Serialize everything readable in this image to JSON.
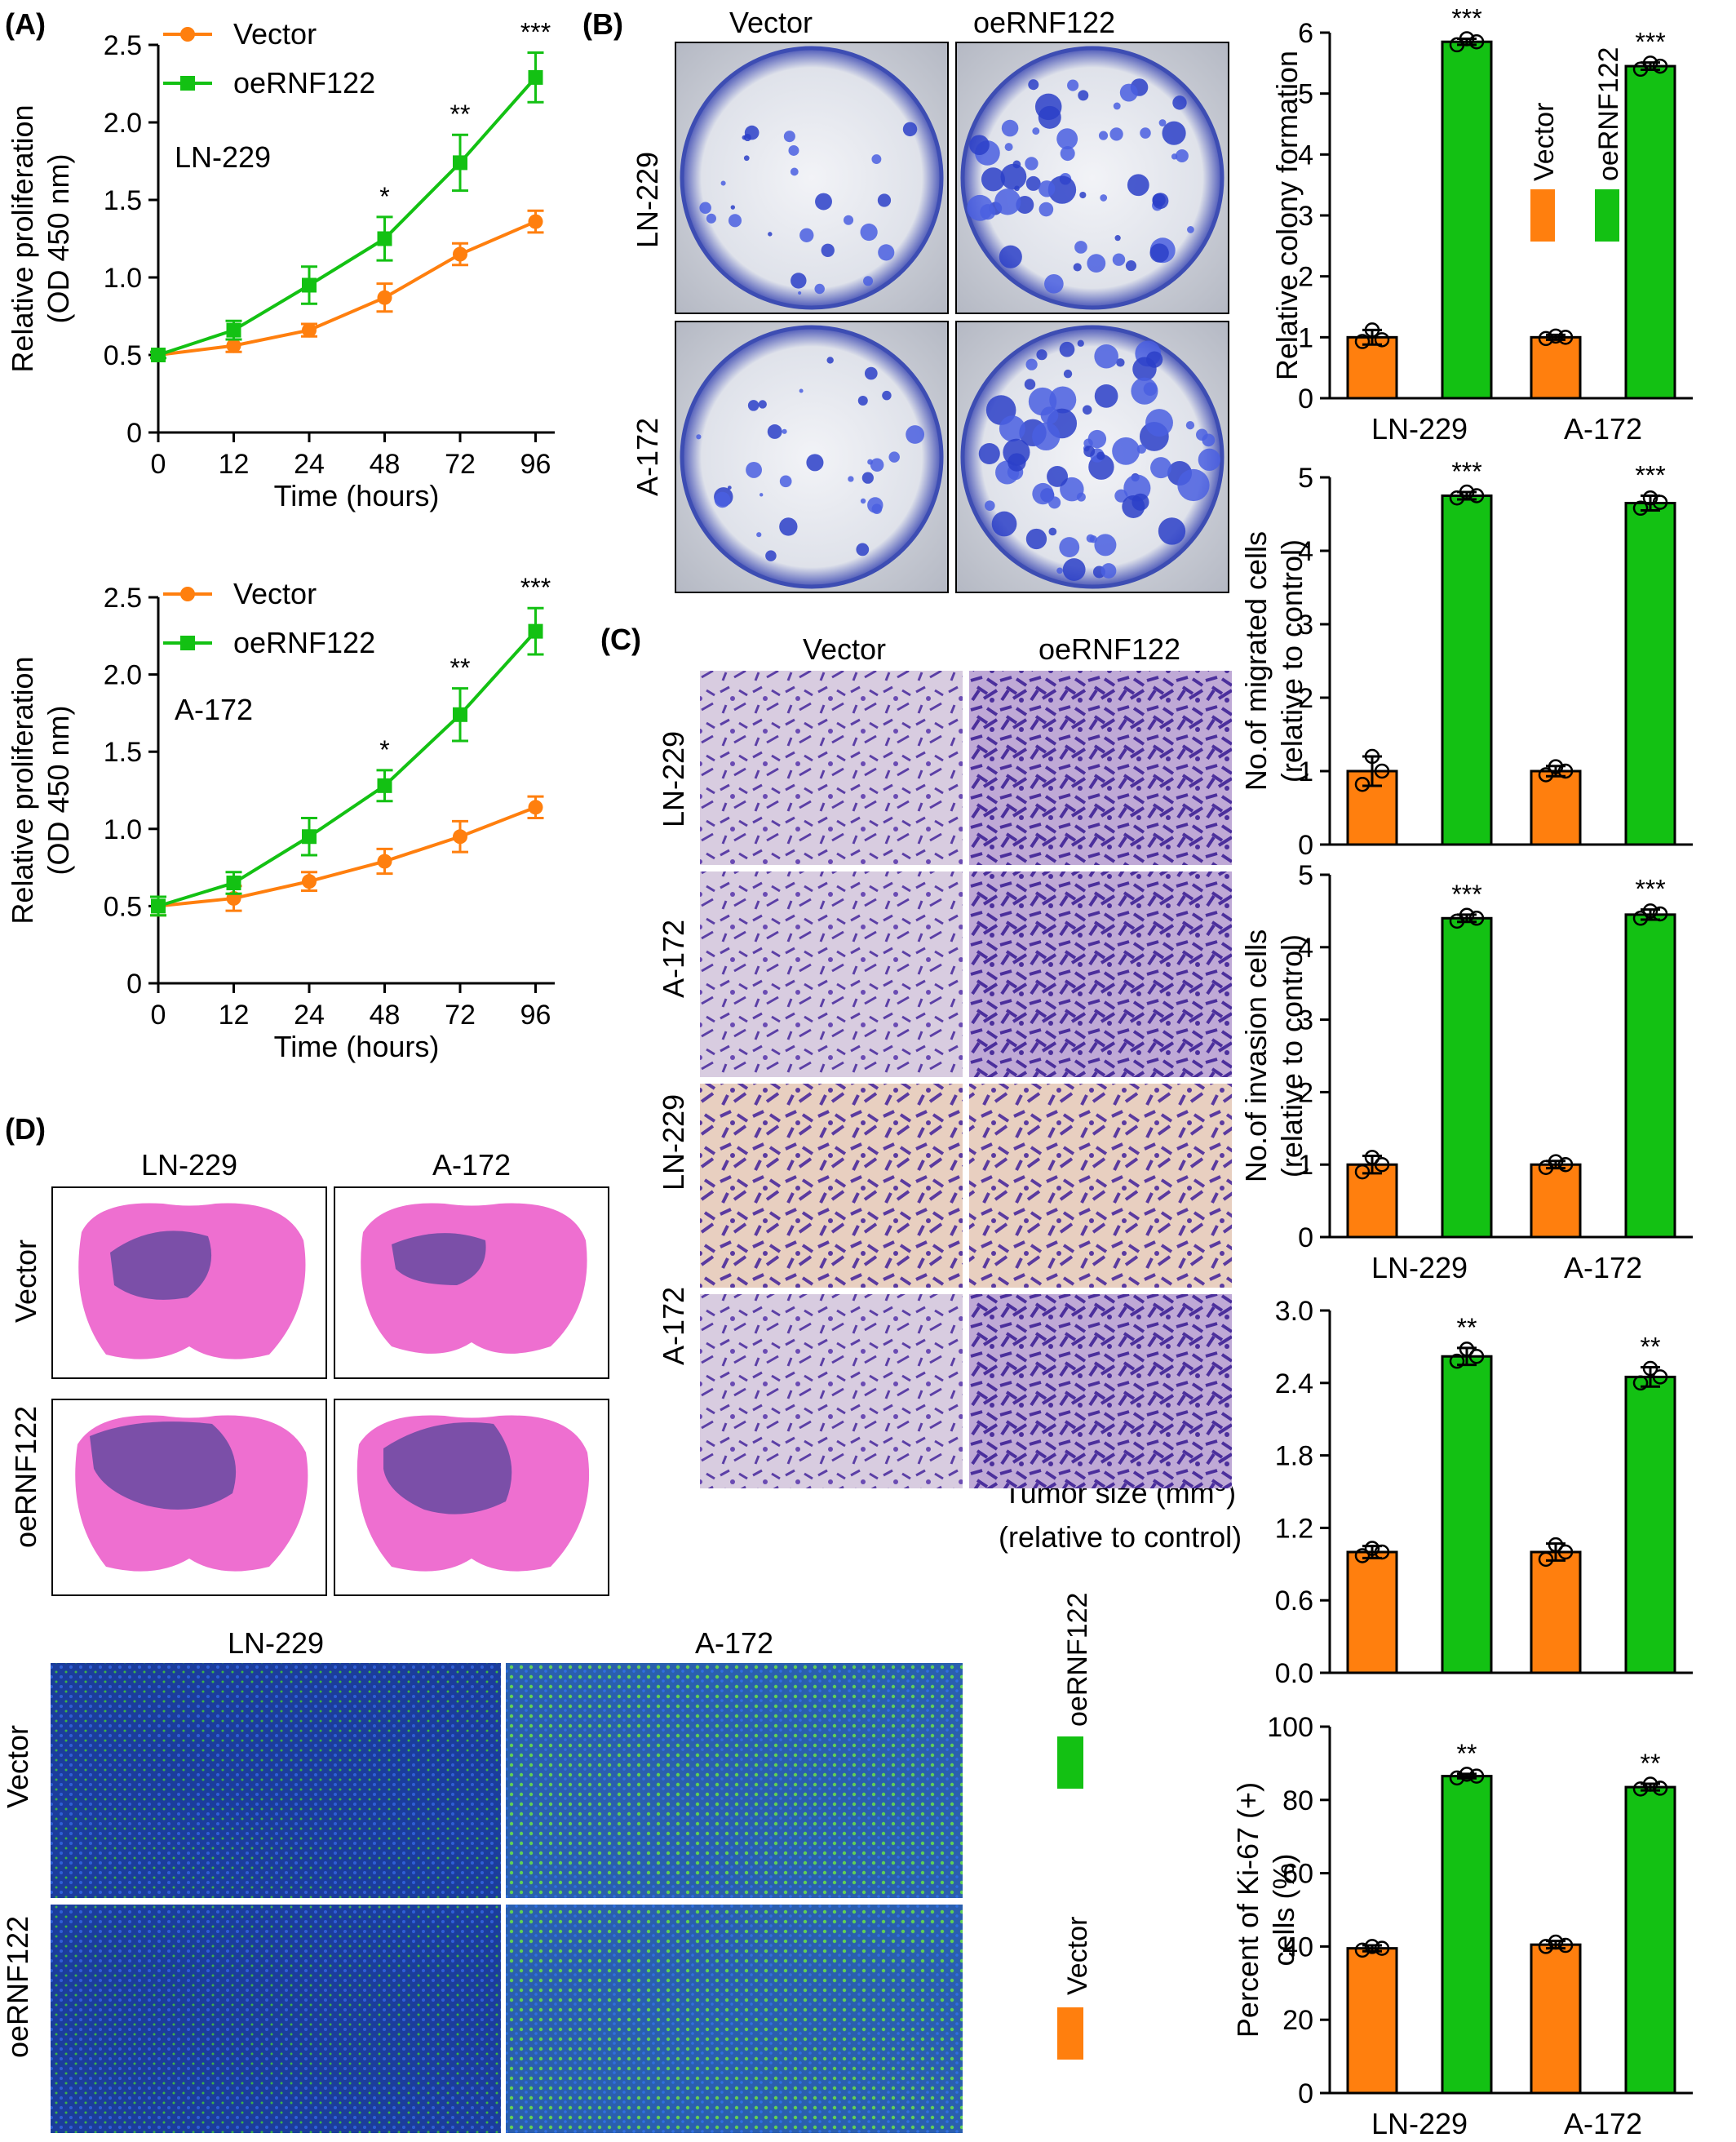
{
  "panels": {
    "A": "(A)",
    "B": "(B)",
    "C": "(C)",
    "D": "(D)"
  },
  "legend": {
    "vector": "Vector",
    "oe": "oeRNF122"
  },
  "colors": {
    "vector": "#ff7f0e",
    "oe": "#13c113",
    "axis": "#000000"
  },
  "images": {
    "B": {
      "cols": [
        "Vector",
        "oeRNF122"
      ],
      "rows": [
        "LN-229",
        "A-172"
      ]
    },
    "C": {
      "cols": [
        "Vector",
        "oeRNF122"
      ],
      "rows": [
        "LN-229",
        "A-172",
        "LN-229",
        "A-172"
      ]
    },
    "D_he": {
      "cols": [
        "LN-229",
        "A-172"
      ],
      "rows": [
        "Vector",
        "oeRNF122"
      ]
    },
    "D_if": {
      "cols": [
        "LN-229",
        "A-172"
      ],
      "rows": [
        "Vector",
        "oeRNF122"
      ]
    }
  },
  "chart_data": [
    {
      "id": "A1",
      "type": "line",
      "annotation": "LN-229",
      "xlabel": "Time (hours)",
      "ylabel": [
        "Relative proliferation",
        "(OD 450 nm)"
      ],
      "x": [
        0,
        12,
        24,
        48,
        72,
        96
      ],
      "x_ticks": [
        "0",
        "12",
        "24",
        "48",
        "72",
        "96"
      ],
      "ylim": [
        0,
        2.5
      ],
      "y_ticks": [
        "0",
        "0.5",
        "1.0",
        "1.5",
        "2.0",
        "2.5"
      ],
      "series": [
        {
          "name": "Vector",
          "values": [
            0.5,
            0.56,
            0.66,
            0.87,
            1.15,
            1.36
          ],
          "err": [
            0.02,
            0.04,
            0.04,
            0.09,
            0.07,
            0.07
          ]
        },
        {
          "name": "oeRNF122",
          "values": [
            0.5,
            0.66,
            0.95,
            1.25,
            1.74,
            2.29
          ],
          "err": [
            0.02,
            0.06,
            0.12,
            0.14,
            0.18,
            0.16
          ]
        }
      ],
      "significance": [
        "",
        "",
        "",
        "*",
        "**",
        "***"
      ]
    },
    {
      "id": "A2",
      "type": "line",
      "annotation": "A-172",
      "xlabel": "Time (hours)",
      "ylabel": [
        "Relative proliferation",
        "(OD 450 nm)"
      ],
      "x": [
        0,
        12,
        24,
        48,
        72,
        96
      ],
      "x_ticks": [
        "0",
        "12",
        "24",
        "48",
        "72",
        "96"
      ],
      "ylim": [
        0,
        2.5
      ],
      "y_ticks": [
        "0",
        "0.5",
        "1.0",
        "1.5",
        "2.0",
        "2.5"
      ],
      "series": [
        {
          "name": "Vector",
          "values": [
            0.5,
            0.55,
            0.66,
            0.79,
            0.95,
            1.14
          ],
          "err": [
            0.06,
            0.08,
            0.06,
            0.08,
            0.1,
            0.07
          ]
        },
        {
          "name": "oeRNF122",
          "values": [
            0.5,
            0.65,
            0.95,
            1.28,
            1.74,
            2.28
          ],
          "err": [
            0.06,
            0.07,
            0.12,
            0.1,
            0.17,
            0.15
          ]
        }
      ],
      "significance": [
        "",
        "",
        "",
        "*",
        "**",
        "***"
      ]
    },
    {
      "id": "B",
      "type": "bar",
      "ylabel": [
        "Relative colony formation"
      ],
      "categories": [
        "LN-229",
        "A-172"
      ],
      "ylim": [
        0,
        6
      ],
      "y_ticks": [
        "0",
        "1",
        "2",
        "3",
        "4",
        "5",
        "6"
      ],
      "series": [
        {
          "name": "Vector",
          "values": [
            1.0,
            1.0
          ],
          "err": [
            0.12,
            0.04
          ],
          "points": [
            [
              0.93,
              1.12,
              0.96
            ],
            [
              0.98,
              1.02,
              1.0
            ]
          ]
        },
        {
          "name": "oeRNF122",
          "values": [
            5.85,
            5.45
          ],
          "err": [
            0.05,
            0.06
          ],
          "points": [
            [
              5.8,
              5.9,
              5.85
            ],
            [
              5.4,
              5.5,
              5.45
            ]
          ]
        }
      ],
      "significance": [
        [
          "",
          "***"
        ],
        [
          "",
          "***"
        ]
      ]
    },
    {
      "id": "C1",
      "type": "bar",
      "ylabel": [
        "No.of migrated cells",
        "(relative to control)"
      ],
      "categories": [
        "LN-229",
        "A-172"
      ],
      "ylim": [
        0,
        5
      ],
      "y_ticks": [
        "0",
        "1",
        "2",
        "3",
        "4",
        "5"
      ],
      "series": [
        {
          "name": "Vector",
          "values": [
            1.0,
            1.0
          ],
          "err": [
            0.2,
            0.07
          ],
          "points": [
            [
              0.82,
              1.2,
              1.0
            ],
            [
              0.95,
              1.06,
              1.0
            ]
          ]
        },
        {
          "name": "oeRNF122",
          "values": [
            4.75,
            4.65
          ],
          "err": [
            0.05,
            0.1
          ],
          "points": [
            [
              4.72,
              4.8,
              4.75
            ],
            [
              4.58,
              4.72,
              4.66
            ]
          ]
        }
      ],
      "significance": [
        [
          "",
          "***"
        ],
        [
          "",
          "***"
        ]
      ]
    },
    {
      "id": "C2",
      "type": "bar",
      "ylabel": [
        "No.of invasion cells",
        "(relative to control)"
      ],
      "categories": [
        "LN-229",
        "A-172"
      ],
      "ylim": [
        0,
        5
      ],
      "y_ticks": [
        "0",
        "1",
        "2",
        "3",
        "4",
        "5"
      ],
      "series": [
        {
          "name": "Vector",
          "values": [
            1.0,
            1.0
          ],
          "err": [
            0.12,
            0.05
          ],
          "points": [
            [
              0.9,
              1.1,
              1.0
            ],
            [
              0.96,
              1.04,
              1.0
            ]
          ]
        },
        {
          "name": "oeRNF122",
          "values": [
            4.4,
            4.45
          ],
          "err": [
            0.05,
            0.07
          ],
          "points": [
            [
              4.36,
              4.44,
              4.4
            ],
            [
              4.4,
              4.5,
              4.46
            ]
          ]
        }
      ],
      "significance": [
        [
          "",
          "***"
        ],
        [
          "",
          "***"
        ]
      ]
    },
    {
      "id": "D1",
      "type": "bar",
      "ylabel": [
        "Tumor size (mm",
        "(relative to control)"
      ],
      "ylabel_sup": "3",
      "ylabel_tail": ")",
      "categories": [
        "LN-229",
        "A-172"
      ],
      "ylim": [
        0,
        3.0
      ],
      "y_ticks": [
        "0.0",
        "0.6",
        "1.2",
        "1.8",
        "2.4",
        "3.0"
      ],
      "series": [
        {
          "name": "Vector",
          "values": [
            1.0,
            1.0
          ],
          "err": [
            0.05,
            0.07
          ],
          "points": [
            [
              0.97,
              1.03,
              1.0
            ],
            [
              0.94,
              1.06,
              1.0
            ]
          ]
        },
        {
          "name": "oeRNF122",
          "values": [
            2.62,
            2.45
          ],
          "err": [
            0.07,
            0.08
          ],
          "points": [
            [
              2.58,
              2.68,
              2.62
            ],
            [
              2.4,
              2.52,
              2.45
            ]
          ]
        }
      ],
      "significance": [
        [
          "",
          "**"
        ],
        [
          "",
          "**"
        ]
      ]
    },
    {
      "id": "D2",
      "type": "bar",
      "ylabel": [
        "Percent of Ki-67 (+)",
        "cells (%)"
      ],
      "categories": [
        "LN-229",
        "A-172"
      ],
      "ylim": [
        0,
        100
      ],
      "y_ticks": [
        "0",
        "20",
        "40",
        "60",
        "80",
        "100"
      ],
      "series": [
        {
          "name": "Vector",
          "values": [
            39.5,
            40.5
          ],
          "err": [
            0.8,
            1.0
          ],
          "points": [
            [
              39,
              40,
              39.5
            ],
            [
              40,
              41.2,
              40.3
            ]
          ]
        },
        {
          "name": "oeRNF122",
          "values": [
            86.5,
            83.5
          ],
          "err": [
            0.6,
            0.9
          ],
          "points": [
            [
              86,
              87,
              86.5
            ],
            [
              83,
              84.3,
              83.2
            ]
          ]
        }
      ],
      "significance": [
        [
          "",
          "**"
        ],
        [
          "",
          "**"
        ]
      ]
    }
  ]
}
